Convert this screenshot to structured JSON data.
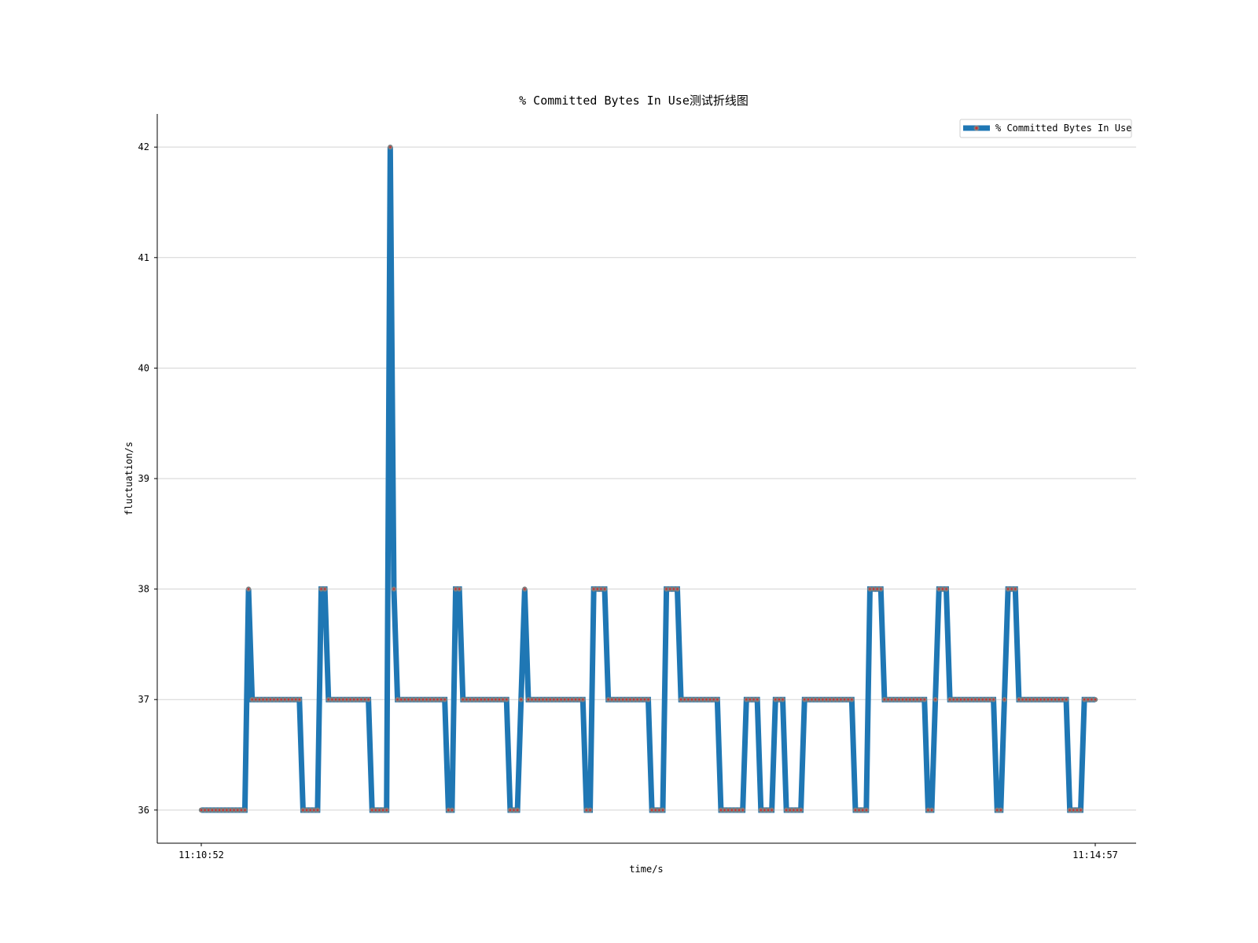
{
  "chart_data": {
    "type": "line",
    "title": "% Committed Bytes In Use测试折线图",
    "xlabel": "time/s",
    "ylabel": "fluctuation/s",
    "x_tick_labels": [
      "11:10:52",
      "11:14:57"
    ],
    "ylim": [
      35.7,
      42.3
    ],
    "yticks": [
      36,
      37,
      38,
      39,
      40,
      41,
      42
    ],
    "grid": "horizontal",
    "legend_position": "upper-right",
    "series": [
      {
        "name": "% Committed Bytes In Use",
        "color": "#1f77b4",
        "marker_color": "#d62728",
        "marker_edge": "#7f7f7f",
        "values": [
          36,
          36,
          36,
          36,
          36,
          36,
          36,
          36,
          36,
          36,
          36,
          36,
          36,
          38,
          37,
          37,
          37,
          37,
          37,
          37,
          37,
          37,
          37,
          37,
          37,
          37,
          37,
          37,
          36,
          36,
          36,
          36,
          36,
          38,
          38,
          37,
          37,
          37,
          37,
          37,
          37,
          37,
          37,
          37,
          37,
          37,
          37,
          36,
          36,
          36,
          36,
          36,
          42,
          38,
          37,
          37,
          37,
          37,
          37,
          37,
          37,
          37,
          37,
          37,
          37,
          37,
          37,
          37,
          36,
          36,
          38,
          38,
          37,
          37,
          37,
          37,
          37,
          37,
          37,
          37,
          37,
          37,
          37,
          37,
          37,
          36,
          36,
          36,
          37,
          38,
          37,
          37,
          37,
          37,
          37,
          37,
          37,
          37,
          37,
          37,
          37,
          37,
          37,
          37,
          37,
          37,
          36,
          36,
          38,
          38,
          38,
          38,
          37,
          37,
          37,
          37,
          37,
          37,
          37,
          37,
          37,
          37,
          37,
          37,
          36,
          36,
          36,
          36,
          38,
          38,
          38,
          38,
          37,
          37,
          37,
          37,
          37,
          37,
          37,
          37,
          37,
          37,
          37,
          36,
          36,
          36,
          36,
          36,
          36,
          36,
          37,
          37,
          37,
          37,
          36,
          36,
          36,
          36,
          37,
          37,
          37,
          36,
          36,
          36,
          36,
          36,
          37,
          37,
          37,
          37,
          37,
          37,
          37,
          37,
          37,
          37,
          37,
          37,
          37,
          37,
          36,
          36,
          36,
          36,
          38,
          38,
          38,
          38,
          37,
          37,
          37,
          37,
          37,
          37,
          37,
          37,
          37,
          37,
          37,
          37,
          36,
          36,
          37,
          38,
          38,
          38,
          37,
          37,
          37,
          37,
          37,
          37,
          37,
          37,
          37,
          37,
          37,
          37,
          37,
          36,
          36,
          37,
          38,
          38,
          38,
          37,
          37,
          37,
          37,
          37,
          37,
          37,
          37,
          37,
          37,
          37,
          37,
          37,
          37,
          36,
          36,
          36,
          36,
          37,
          37,
          37,
          37
        ]
      }
    ]
  }
}
